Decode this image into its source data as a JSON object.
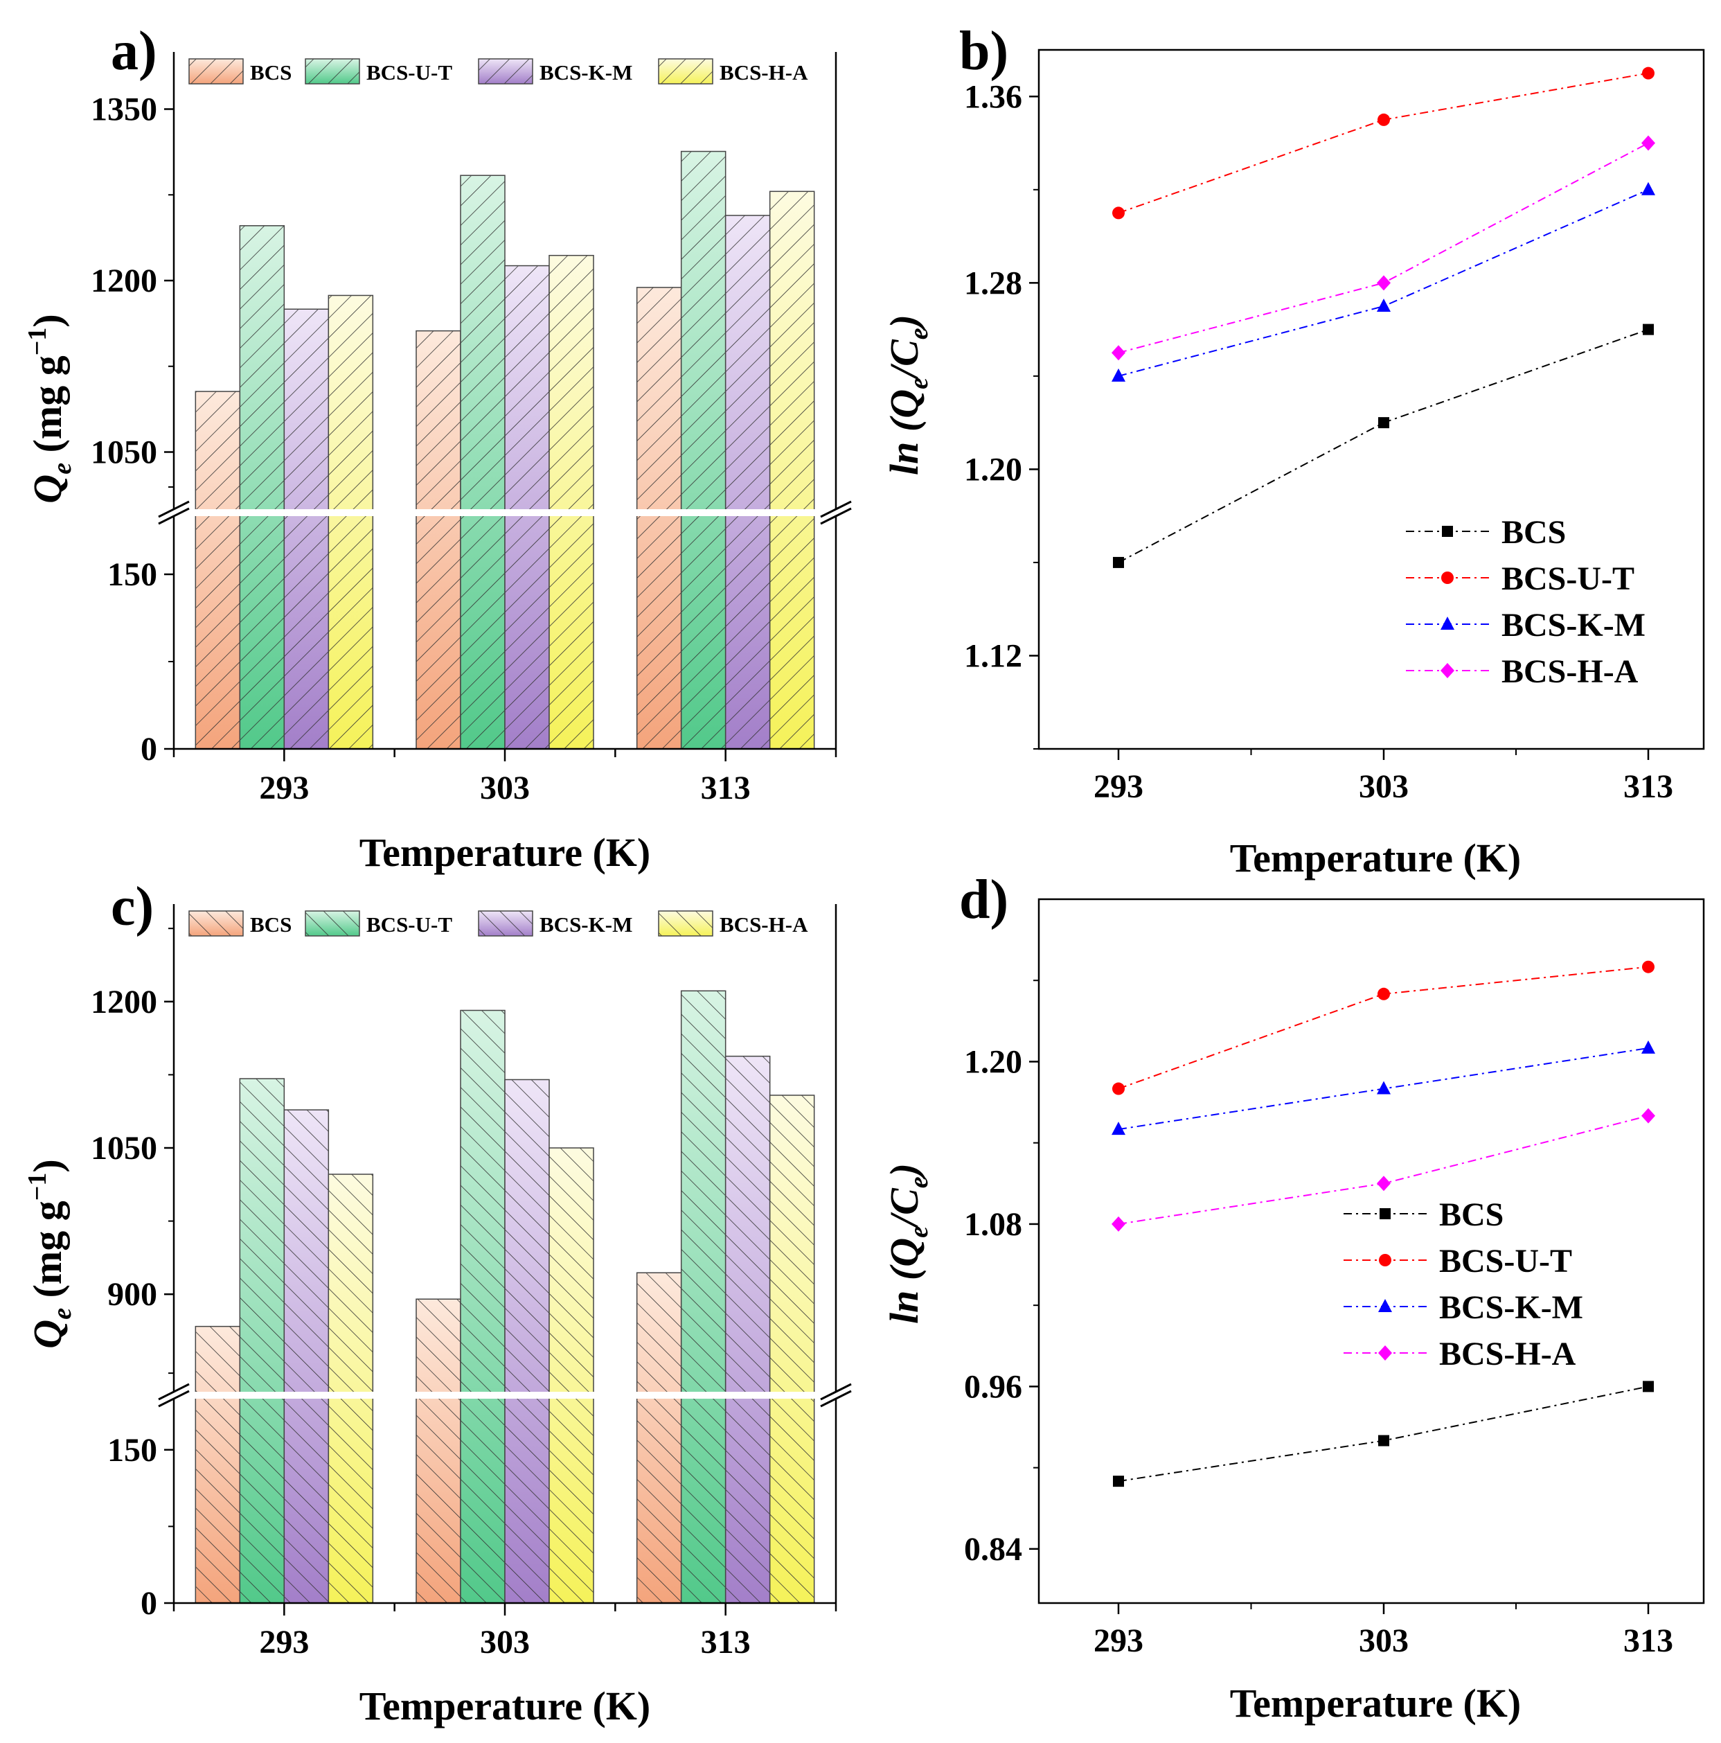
{
  "chart_data": [
    {
      "panel": "a)",
      "type": "bar",
      "categories": [
        "293",
        "303",
        "313"
      ],
      "series": [
        {
          "name": "BCS",
          "values": [
            1103,
            1156,
            1194
          ]
        },
        {
          "name": "BCS-U-T",
          "values": [
            1248,
            1292,
            1313
          ]
        },
        {
          "name": "BCS-K-M",
          "values": [
            1175,
            1213,
            1257
          ]
        },
        {
          "name": "BCS-H-A",
          "values": [
            1187,
            1222,
            1278
          ]
        }
      ],
      "xlabel": "Temperature (K)",
      "ylabel": "Q",
      "ylabel_sub": "e",
      "ylabel_rest": " (mg g",
      "ylabel_sup": "−1",
      "ylabel_close": ")",
      "y_upper": {
        "range": [
          1000,
          1400
        ],
        "ticks": [
          "1050",
          "1200",
          "1350"
        ],
        "tick_values": [
          1050,
          1200,
          1350
        ]
      },
      "y_lower": {
        "range": [
          0,
          200
        ],
        "ticks": [
          "0",
          "150"
        ],
        "tick_values": [
          0,
          150
        ]
      },
      "axis_break": true,
      "legend": "top"
    },
    {
      "panel": "b)",
      "type": "line",
      "x": [
        "293",
        "303",
        "313"
      ],
      "series": [
        {
          "name": "BCS",
          "values": [
            1.16,
            1.22,
            1.26
          ],
          "color": "#000000",
          "marker": "square"
        },
        {
          "name": "BCS-U-T",
          "values": [
            1.31,
            1.35,
            1.37
          ],
          "color": "#ff0000",
          "marker": "circle"
        },
        {
          "name": "BCS-K-M",
          "values": [
            1.24,
            1.27,
            1.32
          ],
          "color": "#0000ff",
          "marker": "triangle"
        },
        {
          "name": "BCS-H-A",
          "values": [
            1.25,
            1.28,
            1.34
          ],
          "color": "#ff00ff",
          "marker": "diamond"
        }
      ],
      "xlabel": "Temperature (K)",
      "ylabel_pre": "ln (",
      "ylabel_q": "Q",
      "ylabel_qsub": "e",
      "ylabel_mid": "/",
      "ylabel_c": "C",
      "ylabel_csub": "e",
      "ylabel_close": ")",
      "ylim": [
        1.08,
        1.38
      ],
      "yticks": [
        "1.12",
        "1.20",
        "1.28",
        "1.36"
      ],
      "ytick_values": [
        1.12,
        1.2,
        1.28,
        1.36
      ],
      "legend": "lower-right"
    },
    {
      "panel": "c)",
      "type": "bar",
      "categories": [
        "293",
        "303",
        "313"
      ],
      "series": [
        {
          "name": "BCS",
          "values": [
            867,
            895,
            922
          ]
        },
        {
          "name": "BCS-U-T",
          "values": [
            1121,
            1191,
            1211
          ]
        },
        {
          "name": "BCS-K-M",
          "values": [
            1089,
            1120,
            1144
          ]
        },
        {
          "name": "BCS-H-A",
          "values": [
            1023,
            1050,
            1104
          ]
        }
      ],
      "xlabel": "Temperature (K)",
      "ylabel": "Q",
      "ylabel_sub": "e",
      "ylabel_rest": " (mg g",
      "ylabel_sup": "−1",
      "ylabel_close": ")",
      "y_upper": {
        "range": [
          800,
          1300
        ],
        "ticks": [
          "900",
          "1050",
          "1200"
        ],
        "tick_values": [
          900,
          1050,
          1200
        ]
      },
      "y_lower": {
        "range": [
          0,
          200
        ],
        "ticks": [
          "0",
          "150"
        ],
        "tick_values": [
          0,
          150
        ]
      },
      "axis_break": true,
      "legend": "top"
    },
    {
      "panel": "d)",
      "type": "line",
      "x": [
        "293",
        "303",
        "313"
      ],
      "series": [
        {
          "name": "BCS",
          "values": [
            0.89,
            0.92,
            0.96
          ],
          "color": "#000000",
          "marker": "square"
        },
        {
          "name": "BCS-U-T",
          "values": [
            1.18,
            1.25,
            1.27
          ],
          "color": "#ff0000",
          "marker": "circle"
        },
        {
          "name": "BCS-K-M",
          "values": [
            1.15,
            1.18,
            1.21
          ],
          "color": "#0000ff",
          "marker": "triangle"
        },
        {
          "name": "BCS-H-A",
          "values": [
            1.08,
            1.11,
            1.16
          ],
          "color": "#ff00ff",
          "marker": "diamond"
        }
      ],
      "xlabel": "Temperature (K)",
      "ylabel_pre": "ln (",
      "ylabel_q": "Q",
      "ylabel_qsub": "e",
      "ylabel_mid": "/",
      "ylabel_c": "C",
      "ylabel_csub": "e",
      "ylabel_close": ")",
      "ylim": [
        0.8,
        1.32
      ],
      "yticks": [
        "0.84",
        "0.96",
        "1.08",
        "1.20"
      ],
      "ytick_values": [
        0.84,
        0.96,
        1.08,
        1.2
      ],
      "legend": "center-right"
    }
  ],
  "bar_colors": {
    "BCS": [
      "#f4a47c",
      "#fde9dc"
    ],
    "BCS-U-T": [
      "#52c98a",
      "#d8f4e4"
    ],
    "BCS-K-M": [
      "#a37fc9",
      "#eee5f7"
    ],
    "BCS-H-A": [
      "#f5f25a",
      "#fdfbe0"
    ]
  }
}
